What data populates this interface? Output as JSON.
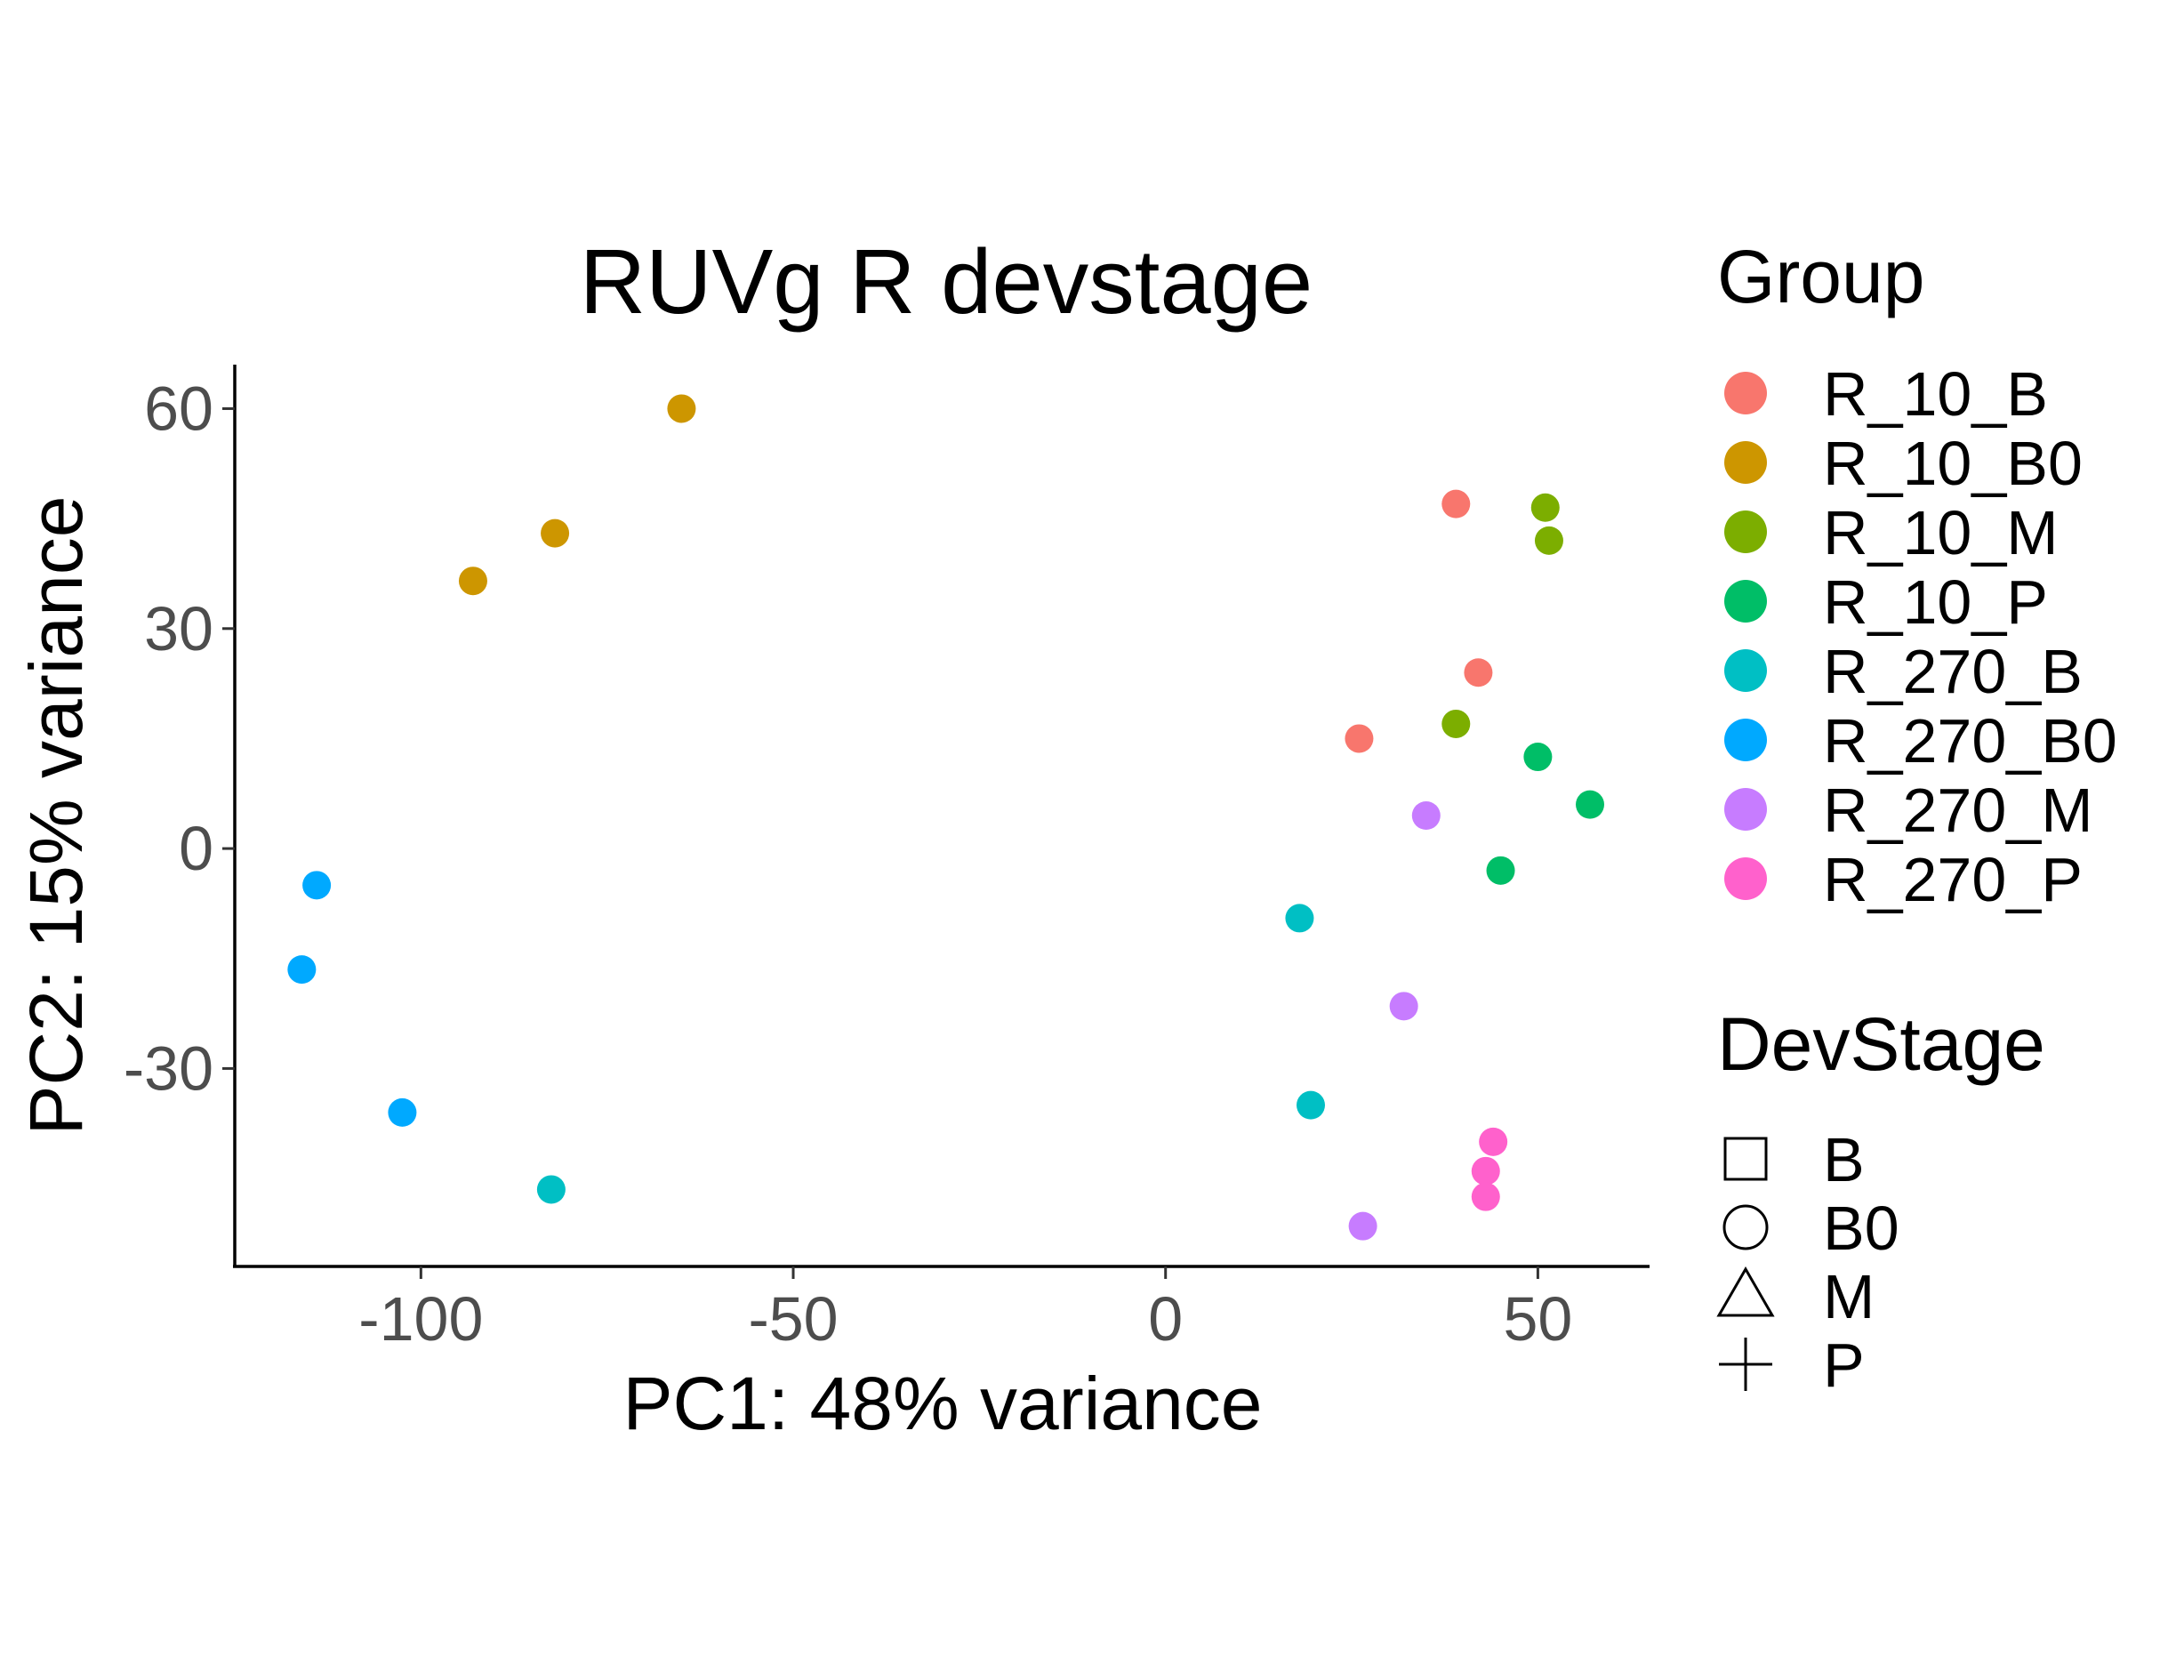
{
  "chart_data": {
    "type": "scatter",
    "title": "RUVg R devstage",
    "xlabel": "PC1: 48% variance",
    "ylabel": "PC2: 15% variance",
    "xlim": [
      -125,
      65
    ],
    "ylim": [
      -57,
      66
    ],
    "x_ticks": [
      -100,
      -50,
      0,
      50
    ],
    "x_tick_labels": [
      "-100",
      "-50",
      "0",
      "50"
    ],
    "y_ticks": [
      60,
      30,
      0,
      -30
    ],
    "y_tick_labels": [
      "60",
      "30",
      "0",
      "-30"
    ],
    "grid": false,
    "legend_position": "right",
    "legends": {
      "group": {
        "title": "Group",
        "entries": [
          {
            "label": "R_10_B",
            "color": "#F8766D"
          },
          {
            "label": "R_10_B0",
            "color": "#CD9600"
          },
          {
            "label": "R_10_M",
            "color": "#7CAE00"
          },
          {
            "label": "R_10_P",
            "color": "#00BE67"
          },
          {
            "label": "R_270_B",
            "color": "#00BFC4"
          },
          {
            "label": "R_270_B0",
            "color": "#00A9FF"
          },
          {
            "label": "R_270_M",
            "color": "#C77CFF"
          },
          {
            "label": "R_270_P",
            "color": "#FF61CC"
          }
        ]
      },
      "devstage": {
        "title": "DevStage",
        "entries": [
          {
            "label": "B",
            "shape": "square"
          },
          {
            "label": "B0",
            "shape": "circle"
          },
          {
            "label": "M",
            "shape": "triangle"
          },
          {
            "label": "P",
            "shape": "cross"
          }
        ]
      }
    },
    "points": [
      {
        "group": "R_10_B",
        "devstage": "B",
        "x": 39,
        "y": 47
      },
      {
        "group": "R_10_B",
        "devstage": "B",
        "x": 42,
        "y": 24
      },
      {
        "group": "R_10_B",
        "devstage": "B",
        "x": 26,
        "y": 15
      },
      {
        "group": "R_10_B0",
        "devstage": "B0",
        "x": -65,
        "y": 60
      },
      {
        "group": "R_10_B0",
        "devstage": "B0",
        "x": -82,
        "y": 43
      },
      {
        "group": "R_10_B0",
        "devstage": "B0",
        "x": -93,
        "y": 36.5
      },
      {
        "group": "R_10_M",
        "devstage": "M",
        "x": 51,
        "y": 46.5
      },
      {
        "group": "R_10_M",
        "devstage": "M",
        "x": 51.5,
        "y": 42
      },
      {
        "group": "R_10_M",
        "devstage": "M",
        "x": 39,
        "y": 17
      },
      {
        "group": "R_10_P",
        "devstage": "P",
        "x": 50,
        "y": 12.5
      },
      {
        "group": "R_10_P",
        "devstage": "P",
        "x": 57,
        "y": 6
      },
      {
        "group": "R_10_P",
        "devstage": "P",
        "x": 45,
        "y": -3
      },
      {
        "group": "R_270_B",
        "devstage": "B",
        "x": 18,
        "y": -9.5
      },
      {
        "group": "R_270_B",
        "devstage": "B",
        "x": 19.5,
        "y": -35
      },
      {
        "group": "R_270_B",
        "devstage": "B",
        "x": -82.5,
        "y": -46.5
      },
      {
        "group": "R_270_B0",
        "devstage": "B0",
        "x": -114,
        "y": -5
      },
      {
        "group": "R_270_B0",
        "devstage": "B0",
        "x": -116,
        "y": -16.5
      },
      {
        "group": "R_270_B0",
        "devstage": "B0",
        "x": -102.5,
        "y": -36
      },
      {
        "group": "R_270_M",
        "devstage": "M",
        "x": 35,
        "y": 4.5
      },
      {
        "group": "R_270_M",
        "devstage": "M",
        "x": 32,
        "y": -21.5
      },
      {
        "group": "R_270_M",
        "devstage": "M",
        "x": 26.5,
        "y": -51.5
      },
      {
        "group": "R_270_P",
        "devstage": "P",
        "x": 44,
        "y": -40
      },
      {
        "group": "R_270_P",
        "devstage": "P",
        "x": 43,
        "y": -44
      },
      {
        "group": "R_270_P",
        "devstage": "P",
        "x": 43,
        "y": -47.5
      }
    ]
  }
}
